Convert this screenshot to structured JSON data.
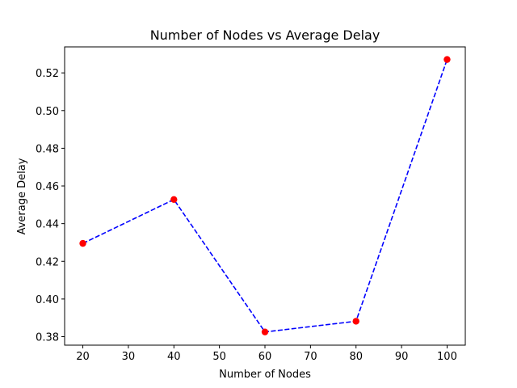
{
  "chart_data": {
    "type": "line",
    "title": "Number of Nodes vs Average Delay",
    "xlabel": "Number of Nodes",
    "ylabel": "Average Delay",
    "xlim": [
      16,
      104
    ],
    "ylim": [
      0.3755,
      0.5338
    ],
    "xticks": [
      20,
      30,
      40,
      50,
      60,
      70,
      80,
      90,
      100
    ],
    "yticks": [
      0.38,
      0.4,
      0.42,
      0.44,
      0.46,
      0.48,
      0.5,
      0.52
    ],
    "ytick_labels": [
      "0.38",
      "0.40",
      "0.42",
      "0.44",
      "0.46",
      "0.48",
      "0.50",
      "0.52"
    ],
    "grid": false,
    "legend": false,
    "series": [
      {
        "x": [
          20,
          40,
          60,
          80,
          100
        ],
        "y": [
          0.4295,
          0.4528,
          0.3825,
          0.3882,
          0.5271
        ],
        "line_color": "#0000ff",
        "line_style": "dashed",
        "marker_color": "#ff0000"
      }
    ]
  }
}
